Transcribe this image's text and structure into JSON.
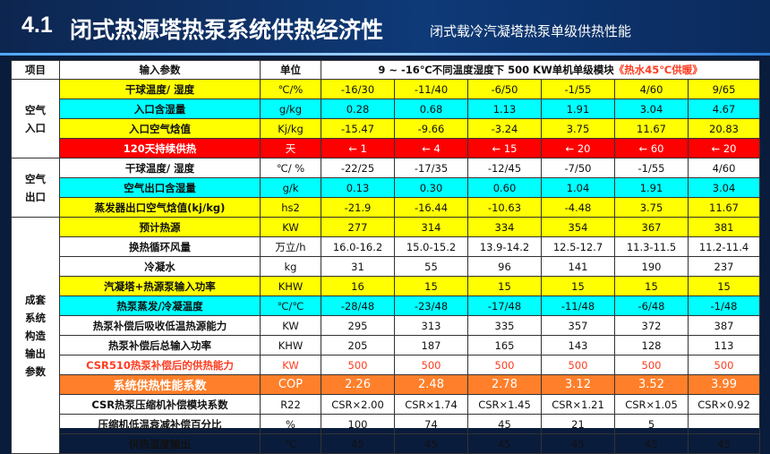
{
  "header": {
    "number": "4.1",
    "title": "闭式热源塔热泵系统供热经济性",
    "subtitle": "闭式载冷汽凝塔热泵单级供热性能"
  },
  "table": {
    "headers": {
      "item": "项目",
      "param": "输入参数",
      "unit": "单位",
      "span_title_prefix": "9 ~ -16℃不同温度湿度下 500 KW单机单级模块",
      "span_title_highlight": "《热水45℃供暖》"
    },
    "groups": [
      {
        "label": "空气\n入口",
        "rows": [
          {
            "param": "干球温度/ 湿度",
            "unit": "℃/%",
            "values": [
              "-16/30",
              "-11/40",
              "-6/50",
              "-1/55",
              "4/60",
              "9/65"
            ],
            "color": "yellow"
          },
          {
            "param": "入口含湿量",
            "unit": "g/kg",
            "values": [
              "0.28",
              "0.68",
              "1.13",
              "1.91",
              "3.04",
              "4.67"
            ],
            "color": "cyan"
          },
          {
            "param": "入口空气焓值",
            "unit": "Kj/kg",
            "values": [
              "-15.47",
              "-9.66",
              "-3.24",
              "3.75",
              "11.67",
              "20.83"
            ],
            "color": "yellow"
          },
          {
            "param": "120天持续供热",
            "unit": "天",
            "values": [
              "← 1",
              "← 4",
              "← 15",
              "← 20",
              "← 60",
              "← 20"
            ],
            "color": "red"
          }
        ]
      },
      {
        "label": "空气\n出口",
        "rows": [
          {
            "param": "干球温度/ 湿度",
            "unit": "℃/ %",
            "values": [
              "-22/25",
              "-17/35",
              "-12/45",
              "-7/50",
              "-1/55",
              "4/60"
            ],
            "color": "white"
          },
          {
            "param": "空气出口含湿量",
            "unit": "g/k",
            "values": [
              "0.13",
              "0.30",
              "0.60",
              "1.04",
              "1.91",
              "3.04"
            ],
            "color": "cyan"
          },
          {
            "param": "蒸发器出口空气焓值(kj/kg)",
            "unit": "hs2",
            "values": [
              "-21.9",
              "-16.44",
              "-10.63",
              "-4.48",
              "3.75",
              "11.67"
            ],
            "color": "yellow"
          }
        ]
      },
      {
        "label": "成套\n系统\n构造\n输出\n参数",
        "rows": [
          {
            "param": "预计热源",
            "unit": "KW",
            "values": [
              "277",
              "314",
              "334",
              "354",
              "367",
              "381"
            ],
            "color": "yellow"
          },
          {
            "param": "换热循环风量",
            "unit": "万立/h",
            "values": [
              "16.0-16.2",
              "15.0-15.2",
              "13.9-14.2",
              "12.5-12.7",
              "11.3-11.5",
              "11.2-11.4"
            ],
            "color": "white"
          },
          {
            "param": "冷凝水",
            "unit": "kg",
            "values": [
              "31",
              "55",
              "96",
              "141",
              "190",
              "237"
            ],
            "color": "white"
          },
          {
            "param": "汽凝塔+热源泵输入功率",
            "unit": "KHW",
            "values": [
              "16",
              "15",
              "15",
              "15",
              "15",
              "15"
            ],
            "color": "yellow"
          },
          {
            "param": "热泵蒸发/冷凝温度",
            "unit": "℃/℃",
            "values": [
              "-28/48",
              "-23/48",
              "-17/48",
              "-11/48",
              "-6/48",
              "-1/48"
            ],
            "color": "cyan"
          },
          {
            "param": "热泵补偿后吸收低温热源能力",
            "unit": "KW",
            "values": [
              "295",
              "313",
              "335",
              "357",
              "372",
              "387"
            ],
            "color": "white"
          },
          {
            "param": "热泵补偿后总输入功率",
            "unit": "KHW",
            "values": [
              "205",
              "187",
              "165",
              "143",
              "128",
              "113"
            ],
            "color": "white"
          },
          {
            "param": "CSR510热泵补偿后的供热能力",
            "unit": "KW",
            "values": [
              "500",
              "500",
              "500",
              "500",
              "500",
              "500"
            ],
            "color": "redtext"
          },
          {
            "param": "系统供热性能系数",
            "unit": "COP",
            "values": [
              "2.26",
              "2.48",
              "2.78",
              "3.12",
              "3.52",
              "3.99"
            ],
            "color": "orange"
          },
          {
            "param": "CSR热泵压缩机补偿模块系数",
            "unit": "R22",
            "values": [
              "CSR×2.00",
              "CSR×1.74",
              "CSR×1.45",
              "CSR×1.21",
              "CSR×1.05",
              "CSR×0.92"
            ],
            "color": "white"
          },
          {
            "param": "压缩机低温衰减补偿百分比",
            "unit": "%",
            "values": [
              "100",
              "74",
              "45",
              "21",
              "5",
              ""
            ],
            "color": "white"
          },
          {
            "param": "供热温度输出",
            "unit": "℃",
            "values": [
              "45",
              "45",
              "45",
              "45",
              "45",
              "45"
            ],
            "color": "white"
          }
        ]
      }
    ]
  }
}
